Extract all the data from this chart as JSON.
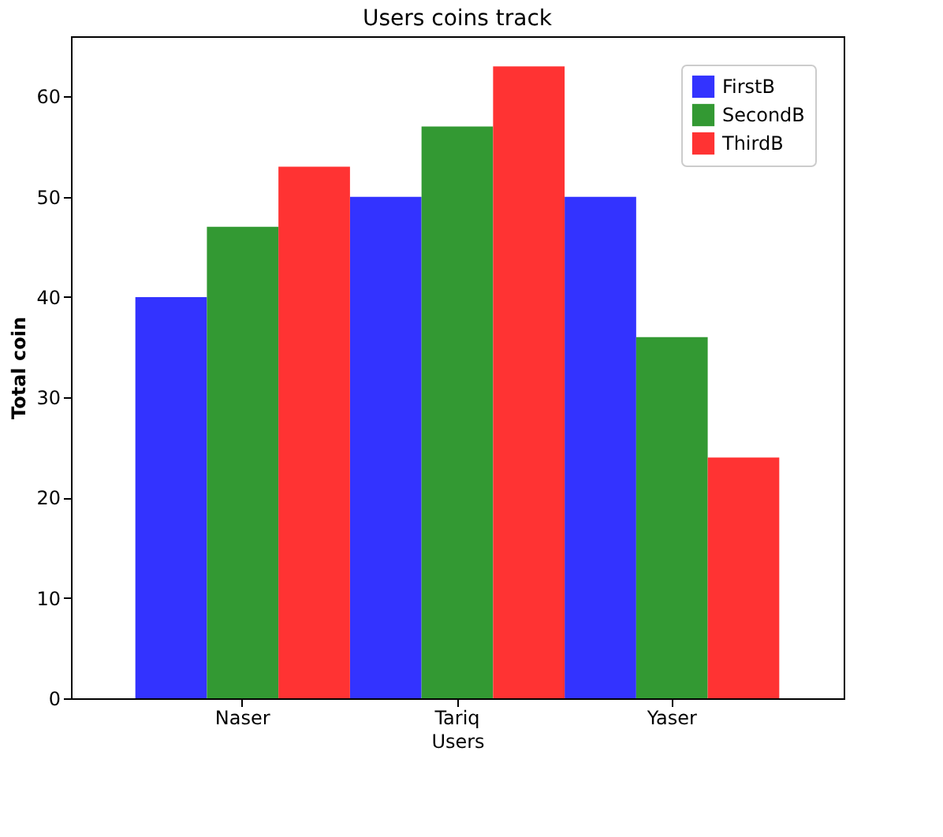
{
  "chart_data": {
    "type": "bar",
    "title": "Users coins track",
    "xlabel": "Users",
    "ylabel": "Total coin",
    "categories": [
      "Naser",
      "Tariq",
      "Yaser"
    ],
    "series": [
      {
        "name": "FirstB",
        "color": "#3333ff",
        "values": [
          40,
          50,
          50
        ]
      },
      {
        "name": "SecondB",
        "color": "#339933",
        "values": [
          47,
          57,
          36
        ]
      },
      {
        "name": "ThirdB",
        "color": "#ff3333",
        "values": [
          53,
          63,
          24
        ]
      }
    ],
    "ylim": [
      0,
      66
    ],
    "yticks": [
      0,
      10,
      20,
      30,
      40,
      50,
      60
    ],
    "grid": false,
    "legend": "top right"
  }
}
